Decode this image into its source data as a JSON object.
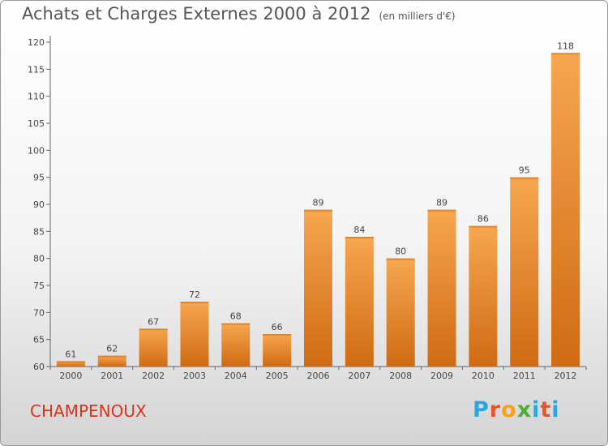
{
  "header": {
    "title": "Achats et Charges Externes 2000 à 2012",
    "unit": "(en milliers d'€)"
  },
  "footer": {
    "town": "CHAMPENOUX",
    "logo": "Proxiti"
  },
  "colors": {
    "bar_top": "#f7a650",
    "bar_bottom": "#cf6b14",
    "accent": "#d9331b"
  },
  "chart_data": {
    "type": "bar",
    "title": "Achats et Charges Externes 2000 à 2012",
    "subtitle": "(en milliers d'€)",
    "categories": [
      "2000",
      "2001",
      "2002",
      "2003",
      "2004",
      "2005",
      "2006",
      "2007",
      "2008",
      "2009",
      "2010",
      "2011",
      "2012"
    ],
    "values": [
      61,
      62,
      67,
      72,
      68,
      66,
      89,
      84,
      80,
      89,
      86,
      95,
      118
    ],
    "yticks": [
      60,
      65,
      70,
      75,
      80,
      85,
      90,
      95,
      100,
      105,
      110,
      115,
      120
    ],
    "ylim": [
      60,
      120
    ],
    "grid": false,
    "xlabel": "",
    "ylabel": ""
  }
}
